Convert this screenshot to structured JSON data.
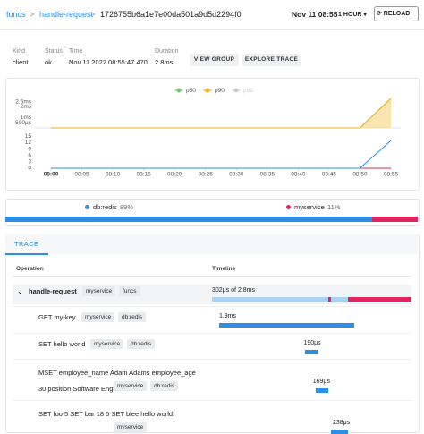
{
  "breadcrumb": [
    "funcs",
    "handle-request",
    "1726755b6a1e7e00da501a9d5d2294f0"
  ],
  "time_range": {
    "current": "Nov 11 08:55",
    "window": "1 HOUR",
    "reload": "RELOAD"
  },
  "summary": {
    "fields": [
      {
        "label": "Kind",
        "value": "client"
      },
      {
        "label": "Status",
        "value": "ok"
      },
      {
        "label": "Time",
        "value": "Nov 11 2022 08:55:47.470"
      },
      {
        "label": "Duration",
        "value": "2.8ms"
      }
    ],
    "buttons": [
      "VIEW GROUP",
      "EXPLORE TRACE"
    ]
  },
  "latency_chart": {
    "ylim": [
      0,
      2.8
    ],
    "yticks": [
      {
        "value": 0.5,
        "label": "500μs"
      },
      {
        "value": 1,
        "label": "1ms"
      },
      {
        "value": 2,
        "label": "2ms"
      },
      {
        "value": 2.5,
        "label": "2.5ms"
      }
    ],
    "series": [
      {
        "name": "p50",
        "color": "#7cc47c",
        "values": [
          0,
          0,
          0,
          0,
          0,
          0,
          0,
          0,
          0,
          0,
          0,
          2.8
        ]
      },
      {
        "name": "p90",
        "color": "#f2b21b",
        "values": [
          0,
          0,
          0,
          0,
          0,
          0,
          0,
          0,
          0,
          0,
          0,
          2.8
        ]
      },
      {
        "name": "p99",
        "color": "#cccccc",
        "hidden": true
      }
    ]
  },
  "count_chart": {
    "x": [
      "08:00",
      "08:05",
      "08:10",
      "08:15",
      "08:20",
      "08:25",
      "08:30",
      "08:35",
      "08:40",
      "08:45",
      "08:50",
      "08:55"
    ],
    "ylim": [
      0,
      16
    ],
    "yticks": [
      0,
      3,
      6,
      9,
      12,
      15
    ],
    "series": [
      {
        "color": "#2d8ee3",
        "values": [
          0,
          0,
          0,
          0,
          0,
          0,
          0,
          0,
          0,
          0,
          0,
          13
        ]
      },
      {
        "color": "#e0245e",
        "values": [
          0,
          0,
          0,
          0,
          0,
          0,
          0,
          0,
          0,
          0,
          0,
          0
        ]
      }
    ]
  },
  "breakdown": {
    "items": [
      {
        "name": "db:redis",
        "value": 89,
        "value_label": "89%",
        "color": "#2d8ee3"
      },
      {
        "name": "myservice",
        "value": 11,
        "value_label": "11%",
        "color": "#e0245e"
      }
    ]
  },
  "trace": {
    "tab": "TRACE",
    "columns": [
      "Operation",
      "Timeline"
    ],
    "spans": [
      {
        "name": "handle-request",
        "tags": [
          "myservice",
          "funcs"
        ],
        "start": 0,
        "duration": 2800,
        "timing_label": "302μs of 2.8ms"
      },
      {
        "name": "GET my-key",
        "tags": [
          "myservice",
          "db:redis"
        ],
        "start": 100,
        "duration": 1900,
        "duration_label": "1.9ms"
      },
      {
        "name": "SET hello world",
        "tags": [
          "myservice",
          "db:redis"
        ],
        "start": 1310,
        "duration": 190,
        "duration_label": "190μs"
      },
      {
        "name": "MSET employee_name Adam Adams employee_age 30 position Software Engineer",
        "tags": [
          "myservice",
          "db:redis"
        ],
        "start": 1460,
        "duration": 169,
        "duration_label": "169μs"
      },
      {
        "name": "SET foo 5 SET bar 18 5 SET blee hello world!",
        "tags": [
          "myservice"
        ],
        "start": 1670,
        "duration": 238,
        "duration_label": "238μs"
      }
    ]
  }
}
